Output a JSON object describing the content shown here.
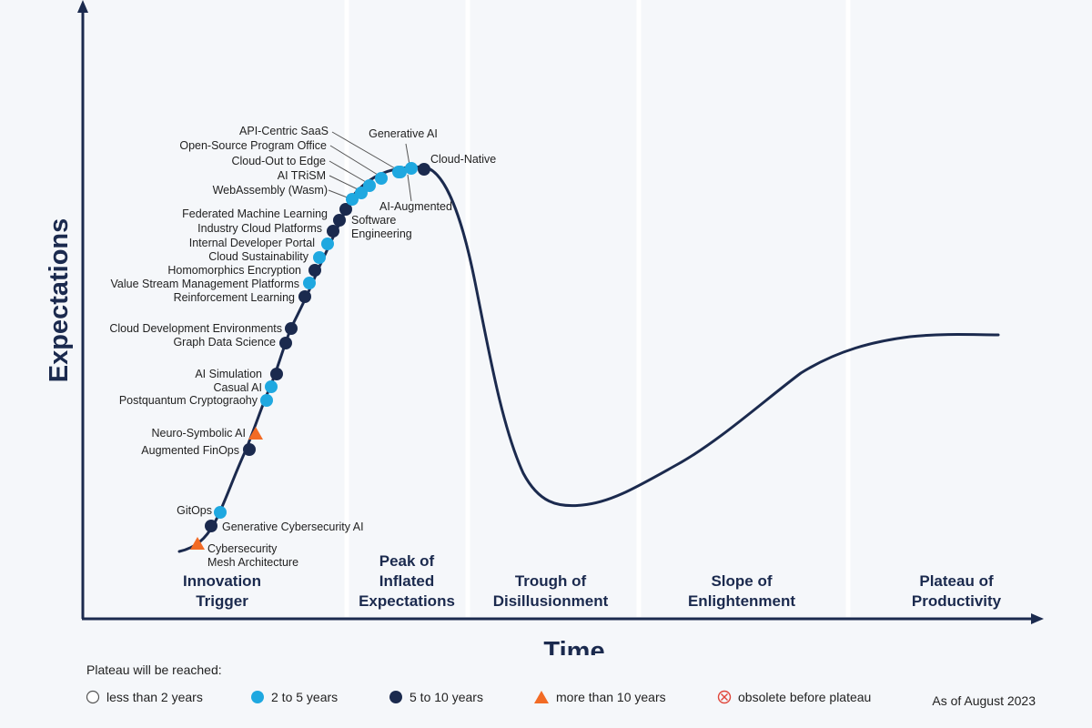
{
  "axes": {
    "y_label": "Expectations",
    "x_label": "Time"
  },
  "phases": [
    {
      "lines": [
        "Innovation",
        "Trigger"
      ]
    },
    {
      "lines": [
        "Peak of",
        "Inflated",
        "Expectations"
      ]
    },
    {
      "lines": [
        "Trough of",
        "Disillusionment"
      ]
    },
    {
      "lines": [
        "Slope of",
        "Enlightenment"
      ]
    },
    {
      "lines": [
        "Plateau of",
        "Productivity"
      ]
    }
  ],
  "chart_data": {
    "type": "scatter",
    "technologies": [
      {
        "name": "Cybersecurity Mesh Architecture",
        "lines": [
          "Cybersecurity",
          "Mesh Architecture"
        ],
        "category": "more than 10 years"
      },
      {
        "name": "Generative Cybersecurity AI",
        "lines": [
          "Generative Cybersecurity AI"
        ],
        "category": "5 to 10 years"
      },
      {
        "name": "GitOps",
        "lines": [
          "GitOps"
        ],
        "category": "2 to 5 years"
      },
      {
        "name": "Augmented FinOps",
        "lines": [
          "Augmented FinOps"
        ],
        "category": "5 to 10 years"
      },
      {
        "name": "Neuro-Symbolic AI",
        "lines": [
          "Neuro-Symbolic AI"
        ],
        "category": "more than 10 years"
      },
      {
        "name": "Postquantum Cryptograohy",
        "lines": [
          "Postquantum Cryptograohy"
        ],
        "category": "2 to 5 years"
      },
      {
        "name": "Casual AI",
        "lines": [
          "Casual AI"
        ],
        "category": "2 to 5 years"
      },
      {
        "name": "AI Simulation",
        "lines": [
          "AI Simulation"
        ],
        "category": "5 to 10 years"
      },
      {
        "name": "Graph Data Science",
        "lines": [
          "Graph Data Science"
        ],
        "category": "5 to 10 years"
      },
      {
        "name": "Cloud Development Environments",
        "lines": [
          "Cloud Development Environments"
        ],
        "category": "5 to 10 years"
      },
      {
        "name": "Reinforcement Learning",
        "lines": [
          "Reinforcement Learning"
        ],
        "category": "5 to 10 years"
      },
      {
        "name": "Value Stream Management Platforms",
        "lines": [
          "Value Stream Management Platforms"
        ],
        "category": "2 to 5 years"
      },
      {
        "name": "Homomorphics Encryption",
        "lines": [
          "Homomorphics Encryption"
        ],
        "category": "5 to 10 years"
      },
      {
        "name": "Cloud Sustainability",
        "lines": [
          "Cloud Sustainability"
        ],
        "category": "2 to 5 years"
      },
      {
        "name": "Internal Developer Portal",
        "lines": [
          "Internal Developer Portal"
        ],
        "category": "2 to 5 years"
      },
      {
        "name": "Industry Cloud Platforms",
        "lines": [
          "Industry Cloud Platforms"
        ],
        "category": "5 to 10 years"
      },
      {
        "name": "AI-Augmented Software Engineering",
        "lines": [
          "Software",
          "Engineering"
        ],
        "category": "5 to 10 years"
      },
      {
        "name": "Federated Machine Learning",
        "lines": [
          "Federated Machine Learning"
        ],
        "category": "5 to 10 years"
      },
      {
        "name": "WebAssembly (Wasm)",
        "lines": [
          "WebAssembly (Wasm)"
        ],
        "category": "2 to 5 years"
      },
      {
        "name": "AI TRiSM",
        "lines": [
          "AI TRiSM"
        ],
        "category": "2 to 5 years"
      },
      {
        "name": "Cloud-Out to Edge",
        "lines": [
          "Cloud-Out to Edge"
        ],
        "category": "2 to 5 years"
      },
      {
        "name": "Open-Source Program Office",
        "lines": [
          "Open-Source Program Office"
        ],
        "category": "2 to 5 years"
      },
      {
        "name": "API-Centric SaaS",
        "lines": [
          "API-Centric SaaS"
        ],
        "category": "2 to 5 years"
      },
      {
        "name": "Generative AI",
        "lines": [
          "Generative AI"
        ],
        "category": "2 to 5 years"
      },
      {
        "name": "AI-Augmented",
        "lines": [
          "AI-Augmented"
        ],
        "category": "2 to 5 years"
      },
      {
        "name": "Cloud-Native",
        "lines": [
          "Cloud-Native"
        ],
        "category": "5 to 10 years"
      }
    ]
  },
  "legend": {
    "title": "Plateau will be reached:",
    "items": [
      {
        "label": "less than 2 years",
        "marker": "hollow-circle"
      },
      {
        "label": "2 to 5 years",
        "marker": "light-blue-circle"
      },
      {
        "label": "5 to 10 years",
        "marker": "dark-navy-circle"
      },
      {
        "label": "more than 10 years",
        "marker": "orange-triangle"
      },
      {
        "label": "obsolete before plateau",
        "marker": "crossed-circle"
      }
    ],
    "as_of": "As of August 2023"
  },
  "colors": {
    "navy": "#1b2a4e",
    "light_blue": "#1fa8e0",
    "orange": "#f26b25",
    "obsolete_red": "#e0463a",
    "background": "#f5f7fa"
  }
}
